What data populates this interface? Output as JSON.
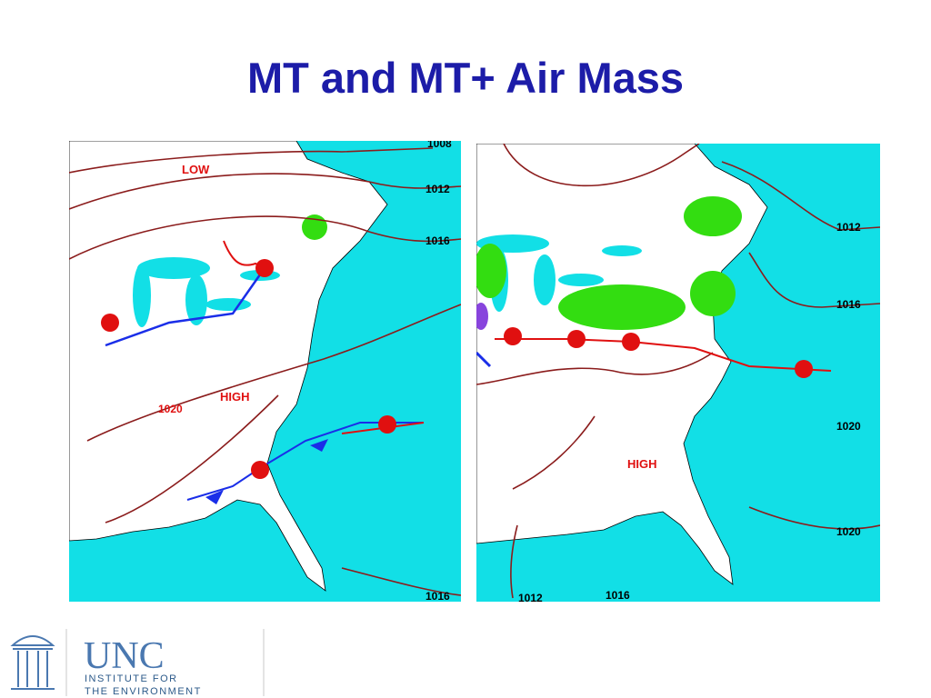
{
  "title": "MT and MT+ Air Mass",
  "maps": [
    {
      "labels": [
        "LOW",
        "HIGH",
        "1008",
        "1012",
        "1016",
        "1020",
        "1016"
      ]
    },
    {
      "labels": [
        "HIGH",
        "1012",
        "1016",
        "1020",
        "1020",
        "1012",
        "1016"
      ]
    }
  ],
  "logo": {
    "name": "UNC",
    "line1": "INSTITUTE FOR",
    "line2": "THE ENVIRONMENT"
  }
}
